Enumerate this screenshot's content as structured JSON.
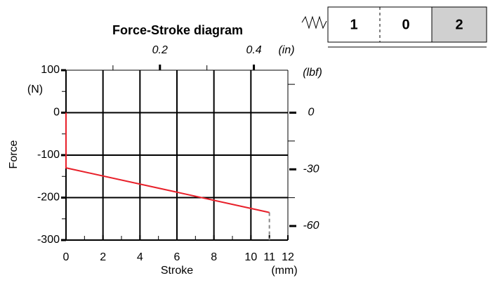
{
  "chart_data": {
    "type": "line",
    "title": "Force-Stroke diagram",
    "xlabel": "Stroke",
    "x_unit": "(mm)",
    "ylabel": "Force",
    "y_unit": "(N)",
    "x2_unit": "(in)",
    "y2_unit": "(lbf)",
    "x": [
      0,
      0,
      11
    ],
    "values": [
      0,
      -130,
      -235
    ],
    "color": "#e8202a",
    "limit_line": {
      "x": [
        11,
        11
      ],
      "values": [
        -235,
        -300
      ],
      "color": "#888888"
    },
    "xlim": [
      0,
      12
    ],
    "xticks": [
      0,
      2,
      4,
      6,
      8,
      10,
      11,
      12
    ],
    "x_minor_ticks": [
      1,
      3,
      5,
      7,
      9
    ],
    "xgrid": [
      2,
      4,
      6,
      8,
      10
    ],
    "ylim": [
      -300,
      100
    ],
    "yticks": [
      100,
      0,
      -100,
      -200,
      -300
    ],
    "y_minor_ticks": [
      50,
      -50,
      -150,
      -250
    ],
    "ygrid": [
      0,
      -100,
      -200
    ],
    "x2lim": [
      0,
      0.4724
    ],
    "x2ticks": [
      0.2,
      0.4
    ],
    "x2_minor_ticks": [
      0.1,
      0.3
    ],
    "y2lim": [
      -67.44,
      22.48
    ],
    "y2ticks": [
      0,
      -30,
      -60
    ],
    "y2_minor_ticks": [
      15,
      -15,
      -45
    ],
    "grid": true
  },
  "widget": {
    "cells": [
      "1",
      "0",
      "2"
    ]
  }
}
